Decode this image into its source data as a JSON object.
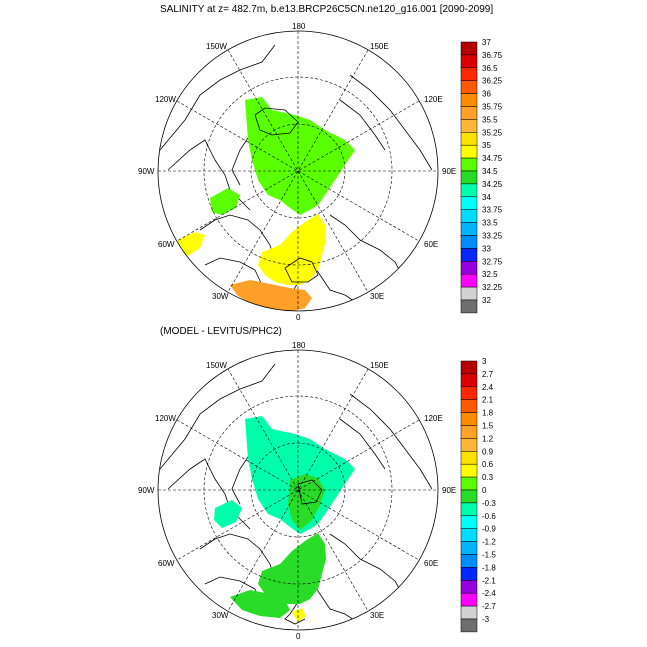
{
  "panels": [
    {
      "title": "SALINITY at z= 482.7m, b.e13.BRCP26C5CN.ne120_g16.001 [2090-2099]",
      "lon_labels": [
        "180",
        "150E",
        "120E",
        "90E",
        "60E",
        "30E",
        "0",
        "30W",
        "60W",
        "90W",
        "120W",
        "150W"
      ],
      "colorbar": {
        "labels": [
          "37",
          "36.75",
          "36.5",
          "36.25",
          "36",
          "35.75",
          "35.5",
          "35.25",
          "35",
          "34.75",
          "34.5",
          "34.25",
          "34",
          "33.75",
          "33.5",
          "33.25",
          "33",
          "32.75",
          "32.5",
          "32.25",
          "32"
        ],
        "colors": [
          "#b40000",
          "#dc0000",
          "#ff2800",
          "#ff5a00",
          "#ff8c00",
          "#ffa028",
          "#ffb43c",
          "#ffe100",
          "#ffff00",
          "#5aff00",
          "#28dc28",
          "#00ffaa",
          "#00ffff",
          "#00dcff",
          "#00b4ff",
          "#008cff",
          "#0028ff",
          "#9600dc",
          "#ff00ff",
          "#d2d2d2",
          "#6e6e6e"
        ]
      }
    },
    {
      "title": "(MODEL - LEVITUS/PHC2)",
      "lon_labels": [
        "180",
        "150E",
        "120E",
        "90E",
        "60E",
        "30E",
        "0",
        "30W",
        "60W",
        "90W",
        "120W",
        "150W"
      ],
      "colorbar": {
        "labels": [
          "3",
          "2.7",
          "2.4",
          "2.1",
          "1.8",
          "1.5",
          "1.2",
          "0.9",
          "0.6",
          "0.3",
          "0",
          "-0.3",
          "-0.6",
          "-0.9",
          "-1.2",
          "-1.5",
          "-1.8",
          "-2.1",
          "-2.4",
          "-2.7",
          "-3"
        ],
        "colors": [
          "#b40000",
          "#dc0000",
          "#ff2800",
          "#ff5a00",
          "#ff8c00",
          "#ffa028",
          "#ffb43c",
          "#ffe100",
          "#ffff00",
          "#5aff00",
          "#28dc28",
          "#00ffaa",
          "#00ffff",
          "#00dcff",
          "#00b4ff",
          "#008cff",
          "#0028ff",
          "#9600dc",
          "#ff00ff",
          "#d2d2d2",
          "#6e6e6e"
        ]
      }
    }
  ]
}
